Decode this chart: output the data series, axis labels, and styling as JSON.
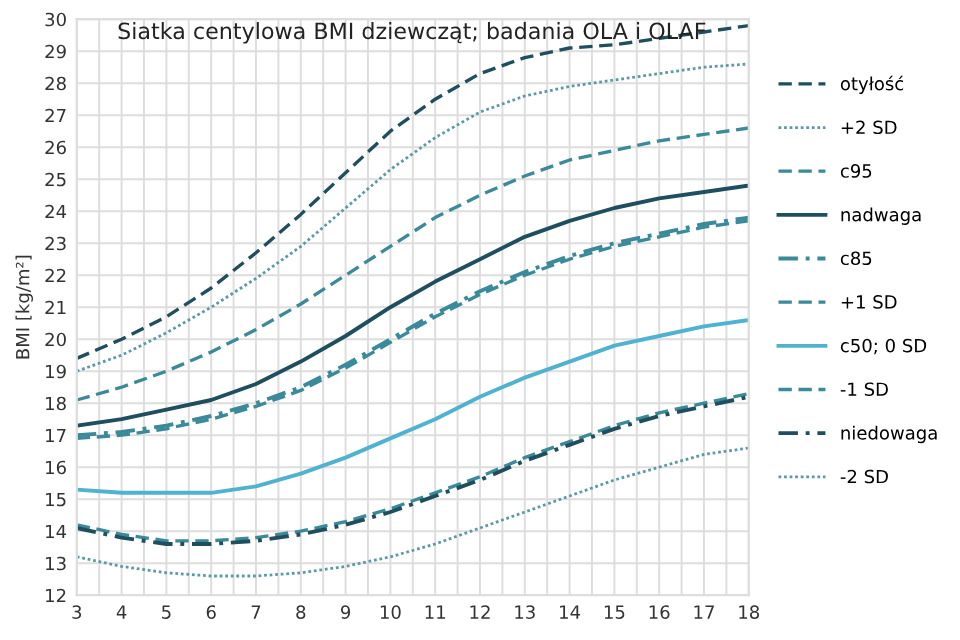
{
  "chart_data": {
    "type": "line",
    "title": "Siatka centylowa BMI dziewcząt; badania OLA i OLAF",
    "ylabel": "BMI [kg/m²]",
    "x": [
      3,
      4,
      5,
      6,
      7,
      8,
      9,
      10,
      11,
      12,
      13,
      14,
      15,
      16,
      17,
      18
    ],
    "xlim": [
      3,
      18
    ],
    "ylim": [
      12,
      30
    ],
    "xticks": [
      3,
      {
        "value": 3.5,
        "label": null
      },
      4,
      {
        "value": 4.5,
        "label": null
      },
      5,
      {
        "value": 5.5,
        "label": null
      },
      6,
      {
        "value": 6.5,
        "label": null
      },
      7,
      {
        "value": 7.5,
        "label": null
      },
      8,
      {
        "value": 8.5,
        "label": null
      },
      9,
      {
        "value": 9.5,
        "label": null
      },
      10,
      {
        "value": 10.5,
        "label": null
      },
      11,
      {
        "value": 11.5,
        "label": null
      },
      12,
      {
        "value": 12.5,
        "label": null
      },
      13,
      {
        "value": 13.5,
        "label": null
      },
      14,
      {
        "value": 14.5,
        "label": null
      },
      15,
      {
        "value": 15.5,
        "label": null
      },
      16,
      {
        "value": 16.5,
        "label": null
      },
      17,
      {
        "value": 17.5,
        "label": null
      },
      18
    ],
    "yticks": [
      12,
      13,
      14,
      15,
      16,
      17,
      18,
      19,
      20,
      21,
      22,
      23,
      24,
      25,
      26,
      27,
      28,
      29,
      30
    ],
    "grid": true,
    "legend": "right",
    "marker": "none",
    "series": [
      {
        "name": "otyłość",
        "color": "#1f4e5f",
        "line_style": "dashed",
        "values": [
          19.4,
          20.0,
          20.7,
          21.6,
          22.7,
          23.9,
          25.2,
          26.5,
          27.5,
          28.3,
          28.8,
          29.1,
          29.2,
          29.4,
          29.6,
          29.8
        ]
      },
      {
        "name": "+2 SD",
        "color": "#5a9aa6",
        "line_style": "dotted",
        "values": [
          19.0,
          19.5,
          20.2,
          21.0,
          21.9,
          22.9,
          24.1,
          25.3,
          26.3,
          27.1,
          27.6,
          27.9,
          28.1,
          28.3,
          28.5,
          28.6
        ]
      },
      {
        "name": "c95",
        "color": "#3a8a9a",
        "line_style": "dashed",
        "values": [
          18.1,
          18.5,
          19.0,
          19.6,
          20.3,
          21.1,
          22.0,
          22.9,
          23.8,
          24.5,
          25.1,
          25.6,
          25.9,
          26.2,
          26.4,
          26.6
        ]
      },
      {
        "name": "nadwaga",
        "color": "#1f4e5f",
        "line_style": "solid",
        "values": [
          17.3,
          17.5,
          17.8,
          18.1,
          18.6,
          19.3,
          20.1,
          21.0,
          21.8,
          22.5,
          23.2,
          23.7,
          24.1,
          24.4,
          24.6,
          24.8
        ]
      },
      {
        "name": "c85",
        "color": "#3a8a9a",
        "line_style": "dashdot",
        "values": [
          17.0,
          17.1,
          17.3,
          17.6,
          18.0,
          18.5,
          19.2,
          20.0,
          20.8,
          21.5,
          22.1,
          22.6,
          23.0,
          23.3,
          23.6,
          23.8
        ]
      },
      {
        "name": "+1 SD",
        "color": "#3a8a9a",
        "line_style": "dashed",
        "values": [
          16.9,
          17.0,
          17.2,
          17.5,
          17.9,
          18.4,
          19.1,
          19.9,
          20.7,
          21.4,
          22.0,
          22.5,
          22.9,
          23.2,
          23.5,
          23.7
        ]
      },
      {
        "name": "c50; 0 SD",
        "color": "#4fb3cf",
        "line_style": "solid",
        "values": [
          15.3,
          15.2,
          15.2,
          15.2,
          15.4,
          15.8,
          16.3,
          16.9,
          17.5,
          18.2,
          18.8,
          19.3,
          19.8,
          20.1,
          20.4,
          20.6
        ]
      },
      {
        "name": "-1 SD",
        "color": "#3a8a9a",
        "line_style": "dashed",
        "values": [
          14.2,
          13.9,
          13.7,
          13.7,
          13.8,
          14.0,
          14.3,
          14.7,
          15.2,
          15.7,
          16.3,
          16.8,
          17.3,
          17.7,
          18.0,
          18.3
        ]
      },
      {
        "name": "niedowaga",
        "color": "#1f4e5f",
        "line_style": "dashdot",
        "values": [
          14.1,
          13.8,
          13.6,
          13.6,
          13.7,
          13.9,
          14.2,
          14.6,
          15.1,
          15.6,
          16.2,
          16.7,
          17.2,
          17.6,
          17.9,
          18.2
        ]
      },
      {
        "name": "-2 SD",
        "color": "#5a9aa6",
        "line_style": "dotted",
        "values": [
          13.2,
          12.9,
          12.7,
          12.6,
          12.6,
          12.7,
          12.9,
          13.2,
          13.6,
          14.1,
          14.6,
          15.1,
          15.6,
          16.0,
          16.4,
          16.6
        ]
      }
    ]
  }
}
